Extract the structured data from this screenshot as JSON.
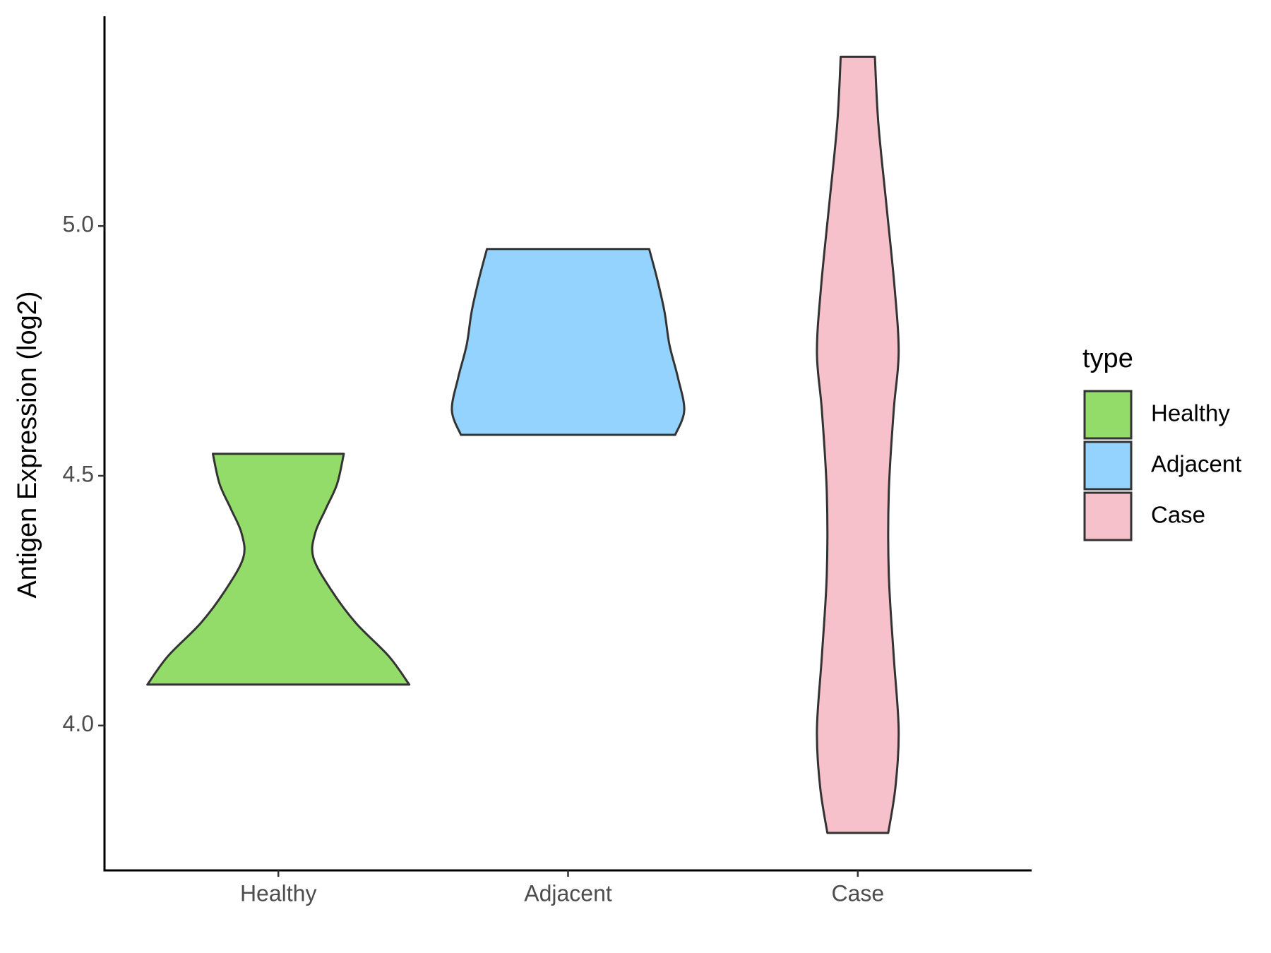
{
  "chart_data": {
    "type": "violin",
    "ylabel": "Antigen Expression (log2)",
    "categories": [
      "Healthy",
      "Adjacent",
      "Case"
    ],
    "ylim": [
      3.71,
      5.42
    ],
    "yticks": [
      {
        "value": 4,
        "label": "4.0"
      },
      4.5,
      {
        "value": 5,
        "label": "5.0"
      }
    ],
    "legend_title": "type",
    "legend": "right",
    "outline_color": "#333333",
    "series": [
      {
        "name": "Healthy",
        "color": "#93dc6a",
        "y": [
          4.082,
          4.139,
          4.205,
          4.27,
          4.336,
          4.385,
          4.434,
          4.484,
          4.544
        ],
        "width": [
          0.452,
          0.381,
          0.268,
          0.184,
          0.121,
          0.127,
          0.164,
          0.203,
          0.226
        ]
      },
      {
        "name": "Adjacent",
        "color": "#93d3fd",
        "y": [
          4.582,
          4.631,
          4.697,
          4.762,
          4.828,
          4.893,
          4.954
        ],
        "width": [
          0.37,
          0.401,
          0.379,
          0.35,
          0.333,
          0.308,
          0.28
        ]
      },
      {
        "name": "Case",
        "color": "#f7c1cc",
        "y": [
          3.785,
          3.877,
          3.992,
          4.139,
          4.303,
          4.467,
          4.631,
          4.746,
          4.877,
          5.041,
          5.205,
          5.339
        ],
        "width": [
          0.105,
          0.13,
          0.141,
          0.124,
          0.107,
          0.107,
          0.124,
          0.141,
          0.127,
          0.099,
          0.071,
          0.059
        ]
      }
    ]
  }
}
